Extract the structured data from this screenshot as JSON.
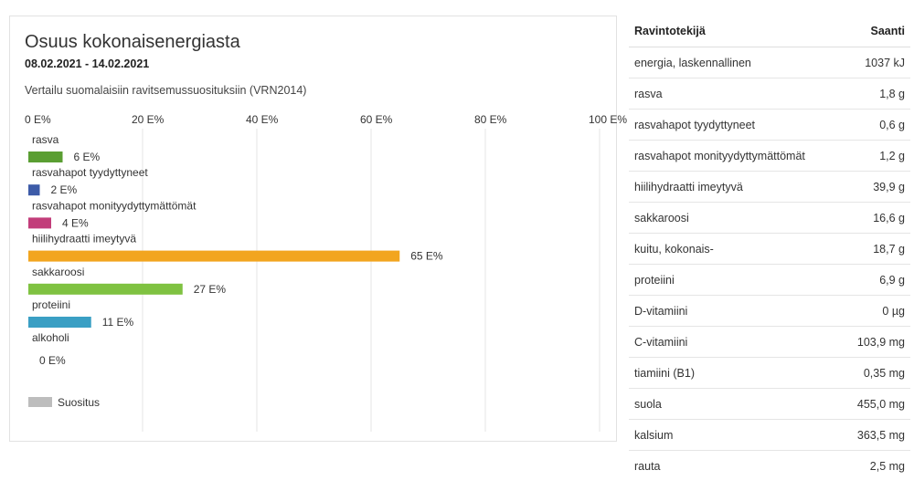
{
  "panel": {
    "title": "Osuus kokonaisenergiasta",
    "period": "08.02.2021 - 14.02.2021",
    "subtitle": "Vertailu suomalaisiin ravitsemussuosituksiin (VRN2014)"
  },
  "chart_data": {
    "type": "bar",
    "orientation": "horizontal",
    "xlim": [
      0,
      100
    ],
    "x_ticks": [
      0,
      20,
      40,
      60,
      80,
      100
    ],
    "x_tick_labels": [
      "0 E%",
      "20 E%",
      "40 E%",
      "60 E%",
      "80 E%",
      "100 E%"
    ],
    "grid": true,
    "categories": [
      "rasva",
      "rasvahapot tyydyttyneet",
      "rasvahapot monityydyttymättömät",
      "hiilihydraatti imeytyvä",
      "sakkaroosi",
      "proteiini",
      "alkoholi"
    ],
    "values": [
      6,
      2,
      4,
      65,
      27,
      11,
      0
    ],
    "value_labels": [
      "6 E%",
      "2 E%",
      "4 E%",
      "65 E%",
      "27 E%",
      "11 E%",
      "0 E%"
    ],
    "colors": [
      "#5a9e32",
      "#3d5ba8",
      "#c23d7a",
      "#f2a51f",
      "#7fc241",
      "#3a9fc4",
      "#999999"
    ],
    "legend": [
      {
        "name": "Suositus",
        "color": "#bdbdbd"
      }
    ],
    "legend_position": "bottom-left"
  },
  "table": {
    "headers": {
      "nutrient": "Ravintotekijä",
      "amount": "Saanti"
    },
    "rows": [
      {
        "name": "energia, laskennallinen",
        "value": "1037 kJ"
      },
      {
        "name": "rasva",
        "value": "1,8 g"
      },
      {
        "name": "rasvahapot tyydyttyneet",
        "value": "0,6 g"
      },
      {
        "name": "rasvahapot monityydyttymättömät",
        "value": "1,2 g"
      },
      {
        "name": "hiilihydraatti imeytyvä",
        "value": "39,9 g"
      },
      {
        "name": "sakkaroosi",
        "value": "16,6 g"
      },
      {
        "name": "kuitu, kokonais-",
        "value": "18,7 g"
      },
      {
        "name": "proteiini",
        "value": "6,9 g"
      },
      {
        "name": "D-vitamiini",
        "value": "0 µg"
      },
      {
        "name": "C-vitamiini",
        "value": "103,9 mg"
      },
      {
        "name": "tiamiini (B1)",
        "value": "0,35 mg"
      },
      {
        "name": "suola",
        "value": "455,0 mg"
      },
      {
        "name": "kalsium",
        "value": "363,5 mg"
      },
      {
        "name": "rauta",
        "value": "2,5 mg"
      }
    ]
  }
}
